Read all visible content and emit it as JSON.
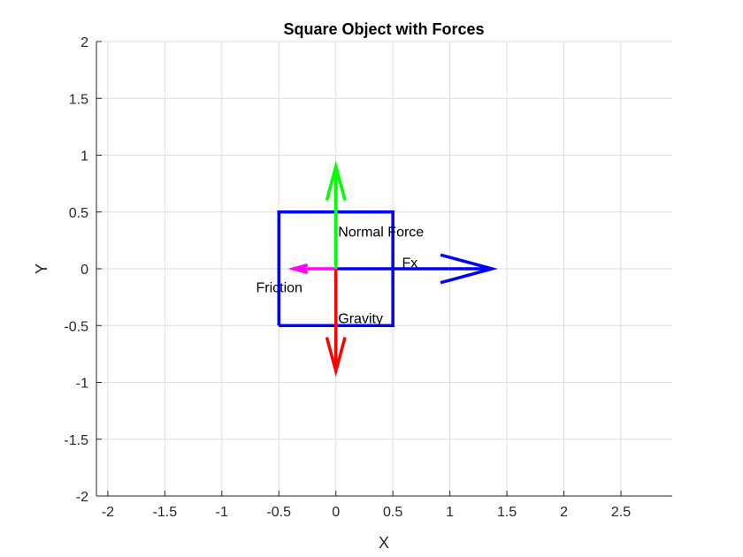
{
  "chart_data": {
    "type": "line",
    "title": "Square Object with Forces",
    "xlabel": "X",
    "ylabel": "Y",
    "xlim": [
      -2.1,
      2.95
    ],
    "ylim": [
      -2,
      2
    ],
    "xticks": [
      -2,
      -1.5,
      -1,
      -0.5,
      0,
      0.5,
      1,
      1.5,
      2,
      2.5
    ],
    "xtick_labels": [
      "-2",
      "-1.5",
      "-1",
      "-0.5",
      "0",
      "0.5",
      "1",
      "1.5",
      "2",
      "2.5"
    ],
    "yticks": [
      -2,
      -1.5,
      -1,
      -0.5,
      0,
      0.5,
      1,
      1.5,
      2
    ],
    "ytick_labels": [
      "-2",
      "-1.5",
      "-1",
      "-0.5",
      "0",
      "0.5",
      "1",
      "1.5",
      "2"
    ],
    "grid": true,
    "square": {
      "x": [
        -0.5,
        0.5,
        0.5,
        -0.5,
        -0.5
      ],
      "y": [
        -0.5,
        -0.5,
        0.5,
        0.5,
        -0.5
      ],
      "color": "#0000ff"
    },
    "forces": [
      {
        "label": "Fx",
        "origin": [
          0,
          0
        ],
        "vector": [
          1.37,
          0
        ],
        "color": "#0000ff",
        "label_at": [
          0.58,
          0.06
        ]
      },
      {
        "label": "Friction",
        "origin": [
          0,
          0
        ],
        "vector": [
          -0.37,
          0
        ],
        "color": "#ff00ff",
        "label_at": [
          -0.7,
          -0.16
        ]
      },
      {
        "label": "Normal Force",
        "origin": [
          0,
          0
        ],
        "vector": [
          0,
          0.9
        ],
        "color": "#00ff00",
        "label_at": [
          0.02,
          0.33
        ]
      },
      {
        "label": "Gravity",
        "origin": [
          0,
          0
        ],
        "vector": [
          0,
          -0.9
        ],
        "color": "#ff0000",
        "label_at": [
          0.02,
          -0.43
        ]
      }
    ]
  }
}
